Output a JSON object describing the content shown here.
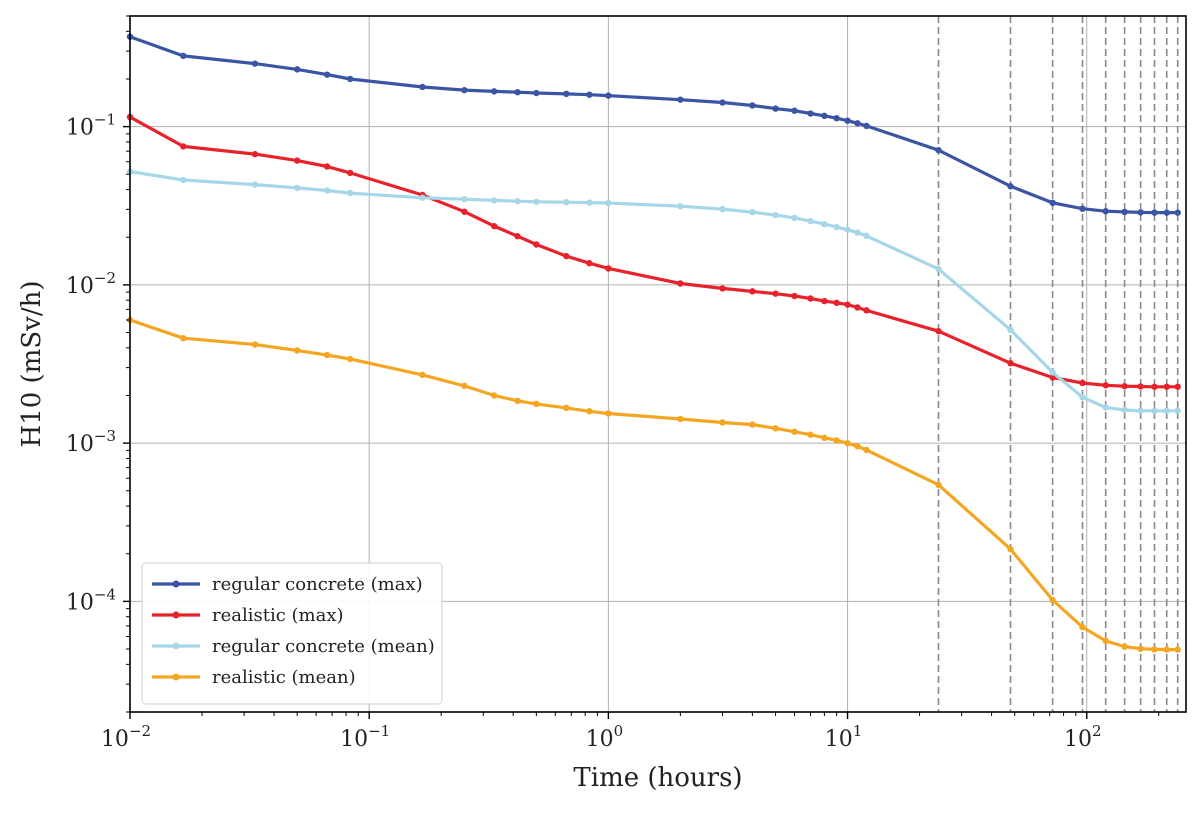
{
  "chart_data": {
    "type": "line",
    "xlabel": "Time (hours)",
    "ylabel": "H10 (mSv/h)",
    "xscale": "log",
    "yscale": "log",
    "xlim": [
      0.01,
      260
    ],
    "ylim": [
      2e-05,
      0.5
    ],
    "x_ticks": [
      {
        "value": 0.01,
        "base": "10",
        "exp": "−2"
      },
      {
        "value": 0.1,
        "base": "10",
        "exp": "−1"
      },
      {
        "value": 1,
        "base": "10",
        "exp": "0"
      },
      {
        "value": 10,
        "base": "10",
        "exp": "1"
      },
      {
        "value": 100,
        "base": "10",
        "exp": "2"
      }
    ],
    "y_ticks": [
      {
        "value": 0.0001,
        "base": "10",
        "exp": "−4"
      },
      {
        "value": 0.001,
        "base": "10",
        "exp": "−3"
      },
      {
        "value": 0.01,
        "base": "10",
        "exp": "−2"
      },
      {
        "value": 0.1,
        "base": "10",
        "exp": "−1"
      }
    ],
    "grid": true,
    "legend_position": "lower-left",
    "vlines": [
      24,
      48,
      72,
      96,
      120,
      144,
      168,
      192,
      216,
      240
    ],
    "x": [
      0.01,
      0.0167,
      0.0333,
      0.05,
      0.0667,
      0.0833,
      0.167,
      0.25,
      0.333,
      0.417,
      0.5,
      0.667,
      0.833,
      1,
      2,
      3,
      4,
      5,
      6,
      7,
      8,
      9,
      10,
      11,
      12,
      24,
      48,
      72,
      96,
      120,
      144,
      168,
      192,
      216,
      240
    ],
    "series": [
      {
        "name": "regular concrete (max)",
        "color": "#3a55a4",
        "values": [
          0.37,
          0.28,
          0.25,
          0.23,
          0.213,
          0.2,
          0.178,
          0.17,
          0.167,
          0.165,
          0.163,
          0.161,
          0.159,
          0.157,
          0.148,
          0.142,
          0.136,
          0.13,
          0.126,
          0.121,
          0.117,
          0.113,
          0.109,
          0.105,
          0.101,
          0.071,
          0.042,
          0.033,
          0.0303,
          0.0292,
          0.0289,
          0.0287,
          0.0286,
          0.0286,
          0.0286
        ]
      },
      {
        "name": "realistic (max)",
        "color": "#e8222a",
        "values": [
          0.115,
          0.075,
          0.067,
          0.061,
          0.056,
          0.051,
          0.037,
          0.029,
          0.0235,
          0.0203,
          0.018,
          0.0152,
          0.0137,
          0.0127,
          0.0102,
          0.0095,
          0.0091,
          0.0088,
          0.0085,
          0.0082,
          0.0079,
          0.0077,
          0.0075,
          0.0072,
          0.0069,
          0.0051,
          0.0032,
          0.0026,
          0.0024,
          0.00232,
          0.00229,
          0.00228,
          0.00227,
          0.00227,
          0.00227
        ]
      },
      {
        "name": "regular concrete (mean)",
        "color": "#a6d7e8",
        "values": [
          0.052,
          0.046,
          0.043,
          0.041,
          0.0395,
          0.038,
          0.0355,
          0.0348,
          0.0342,
          0.0338,
          0.0335,
          0.0333,
          0.0331,
          0.0329,
          0.0314,
          0.0301,
          0.0288,
          0.0276,
          0.0265,
          0.0253,
          0.0242,
          0.0232,
          0.0223,
          0.0214,
          0.0204,
          0.0126,
          0.0052,
          0.0028,
          0.00195,
          0.00168,
          0.00162,
          0.0016,
          0.0016,
          0.0016,
          0.0016
        ]
      },
      {
        "name": "realistic (mean)",
        "color": "#f4a622",
        "values": [
          0.006,
          0.0046,
          0.0042,
          0.00385,
          0.0036,
          0.0034,
          0.0027,
          0.0023,
          0.002,
          0.00185,
          0.00177,
          0.00167,
          0.00159,
          0.00154,
          0.00142,
          0.00135,
          0.00131,
          0.00124,
          0.00118,
          0.00113,
          0.00108,
          0.00104,
          0.000999,
          0.000955,
          0.000905,
          0.000545,
          0.000214,
          0.000102,
          6.88e-05,
          5.63e-05,
          5.18e-05,
          5.02e-05,
          4.97e-05,
          4.96e-05,
          4.96e-05
        ]
      }
    ]
  }
}
